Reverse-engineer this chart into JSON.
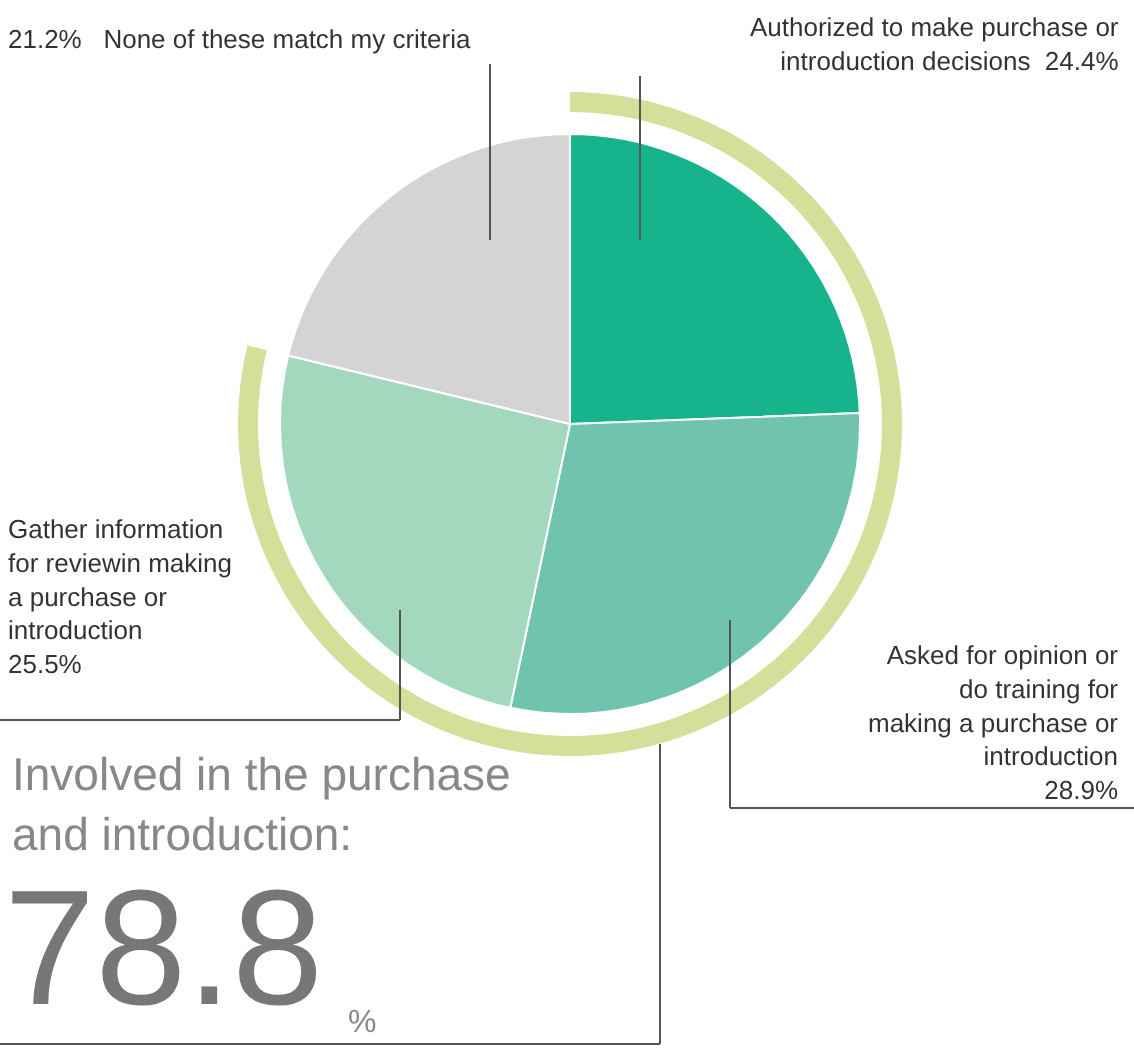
{
  "chart_data": {
    "type": "pie",
    "categories": [
      "Authorized to make purchase or introduction decisions",
      "Asked for opinion or do training for making a purchase or introduction",
      "Gather information for reviewin making a purchase or introduction",
      "None of these match my criteria"
    ],
    "values": [
      24.4,
      28.9,
      25.5,
      21.2
    ],
    "colors": [
      "#17b38c",
      "#70c4ae",
      "#a3d8bf",
      "#d4d4d4"
    ],
    "value_labels": [
      "24.4%",
      "28.9%",
      "25.5%",
      "21.2%"
    ],
    "annotations": [
      "Involved in the purchase and introduction:",
      "78.8",
      "%"
    ],
    "legend": false
  }
}
